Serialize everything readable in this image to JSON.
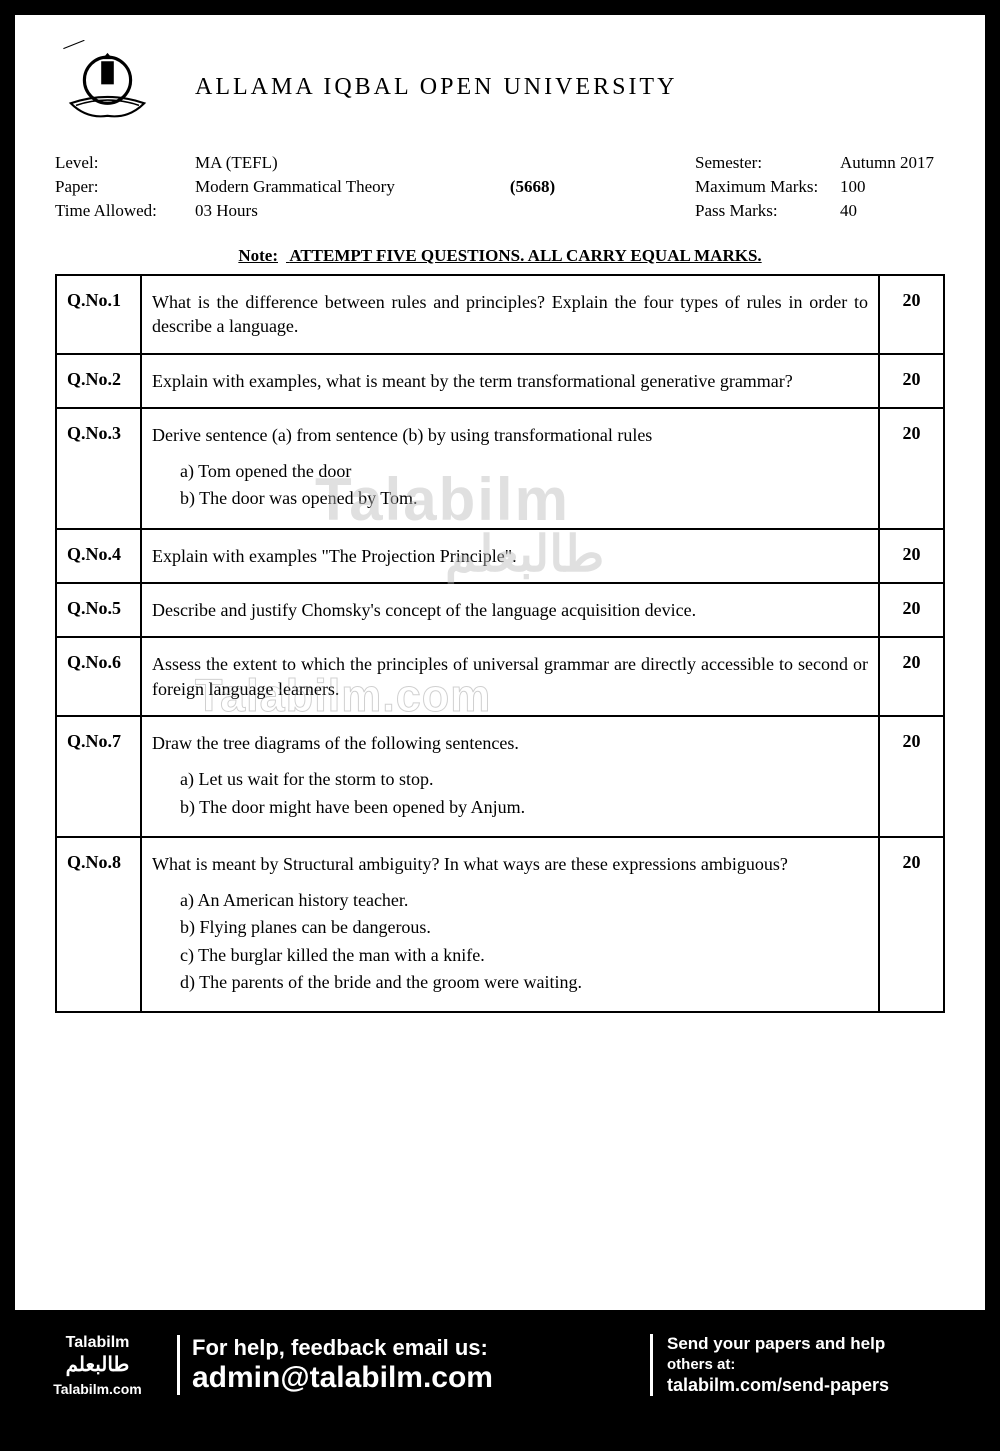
{
  "colors": {
    "page_bg": "#ffffff",
    "border": "#000000",
    "text": "#000000",
    "watermark": "#bbbbbb",
    "footer_bg": "#000000",
    "footer_text": "#ffffff"
  },
  "university": "ALLAMA IQBAL OPEN UNIVERSITY",
  "meta": {
    "level_label": "Level:",
    "level_value": "MA (TEFL)",
    "paper_label": "Paper:",
    "paper_value": "Modern Grammatical Theory",
    "time_label": "Time Allowed:",
    "time_value": "03 Hours",
    "code": "(5668)",
    "semester_label": "Semester:",
    "semester_value": "Autumn 2017",
    "max_label": "Maximum Marks:",
    "max_value": "100",
    "pass_label": "Pass Marks:",
    "pass_value": "40"
  },
  "note_label": "Note:",
  "note_text": "ATTEMPT FIVE QUESTIONS. ALL CARRY EQUAL MARKS.",
  "questions": [
    {
      "no": "Q.No.1",
      "text": "What is the difference between rules and principles?  Explain the four types of rules in order to describe a language.",
      "marks": "20"
    },
    {
      "no": "Q.No.2",
      "text": "Explain with examples, what is meant by the term transformational generative grammar?",
      "marks": "20"
    },
    {
      "no": "Q.No.3",
      "text": "Derive sentence (a) from sentence (b) by using transformational rules",
      "marks": "20",
      "subs": [
        "a)  Tom opened the door",
        "b)  The door was opened by Tom."
      ]
    },
    {
      "no": "Q.No.4",
      "text": "Explain with examples \"The Projection Principle\".",
      "marks": "20"
    },
    {
      "no": "Q.No.5",
      "text": "Describe and justify Chomsky's concept of the language acquisition device.",
      "marks": "20"
    },
    {
      "no": "Q.No.6",
      "text": "Assess the extent to which the principles of universal grammar are directly accessible to second or foreign language learners.",
      "marks": "20"
    },
    {
      "no": "Q.No.7",
      "text": "Draw the tree diagrams of the following sentences.",
      "marks": "20",
      "subs": [
        "a)  Let us wait for the storm to stop.",
        "b)  The door might have been opened by Anjum."
      ]
    },
    {
      "no": "Q.No.8",
      "text": "What is meant by Structural ambiguity?  In what ways are these expressions ambiguous?",
      "marks": "20",
      "subs": [
        "a)  An American history teacher.",
        "b)  Flying planes can be dangerous.",
        "c)  The burglar killed the man with a knife.",
        "d)  The parents of the bride and the groom were waiting."
      ]
    }
  ],
  "watermarks": {
    "w1": "Talabilm",
    "w1b": "طالبعلم",
    "w2": "Talabilm.com"
  },
  "footer": {
    "left1": "Talabilm",
    "left2": "طالبعلم",
    "left3": "Talabilm.com",
    "mid1": "For help, feedback email us:",
    "mid2": "admin@talabilm.com",
    "right1": "Send your papers and help",
    "right2": "others at:",
    "right3": "talabilm.com/send-papers"
  }
}
